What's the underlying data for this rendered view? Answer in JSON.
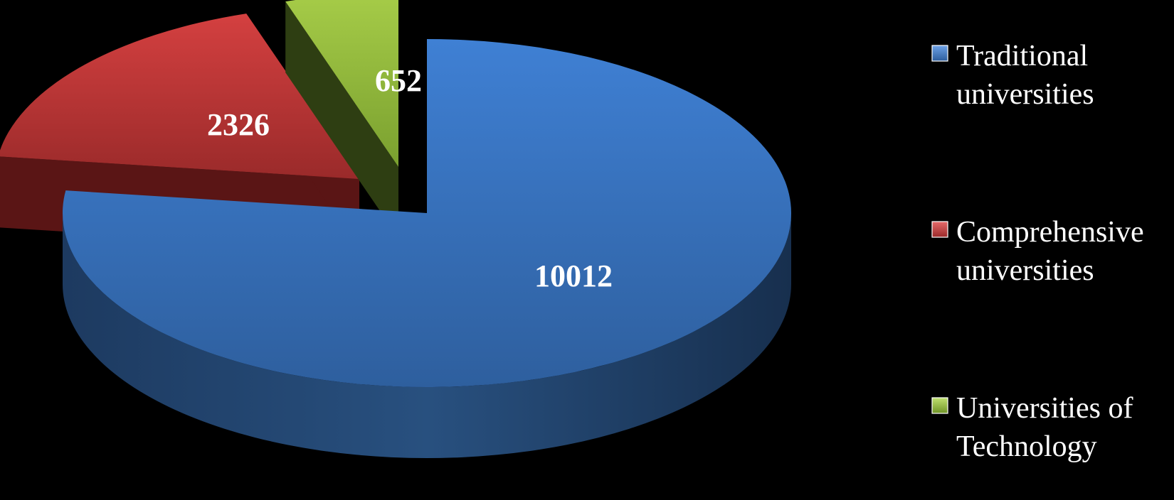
{
  "chart_data": {
    "type": "pie",
    "title": "",
    "categories": [
      "Traditional universities",
      "Comprehensive universities",
      "Universities of Technology"
    ],
    "values": [
      10012,
      2326,
      652
    ],
    "data_labels": [
      "10012",
      "2326",
      "652"
    ],
    "legend": {
      "placement": "right",
      "entries": [
        {
          "lines": [
            "Traditional",
            "universities"
          ],
          "color": "#3a74c4"
        },
        {
          "lines": [
            "Comprehensive",
            "universities"
          ],
          "color": "#c23a3a"
        },
        {
          "lines": [
            "Universities of",
            "Technology"
          ],
          "color": "#93bb3d"
        }
      ]
    },
    "colors": [
      "#3a74c4",
      "#c23a3a",
      "#93bb3d"
    ],
    "style": "3d-exploded",
    "background": "#000000"
  }
}
